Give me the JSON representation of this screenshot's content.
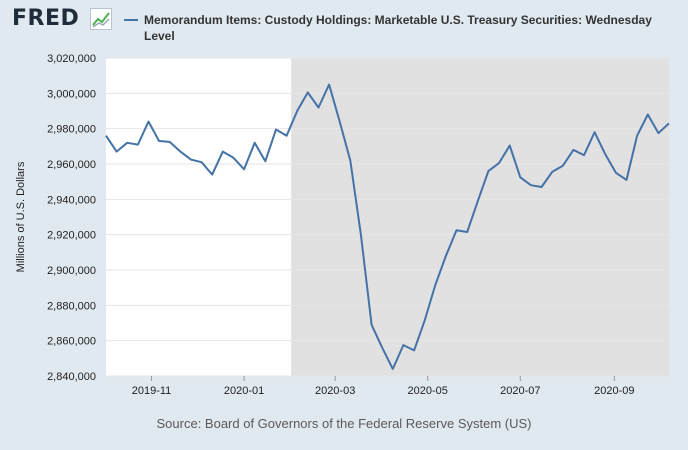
{
  "brand": {
    "logo_text": "FRED",
    "logo_icon": "chart-line-icon"
  },
  "colors": {
    "series": "#4572a7",
    "recession_shade": "#e1e1e1",
    "plot_bg": "#ffffff",
    "page_bg": "#e1e9f0"
  },
  "source": "Source: Board of Governors of the Federal Reserve System (US)",
  "chart_data": {
    "type": "line",
    "title": "",
    "xlabel": "",
    "ylabel": "Millions of U.S. Dollars",
    "ylim": [
      2840000,
      3020000
    ],
    "yticks": [
      2840000,
      2860000,
      2880000,
      2900000,
      2920000,
      2940000,
      2960000,
      2980000,
      3000000,
      3020000
    ],
    "ytick_labels": [
      "2,840,000",
      "2,860,000",
      "2,880,000",
      "2,900,000",
      "2,920,000",
      "2,940,000",
      "2,960,000",
      "2,980,000",
      "3,000,000",
      "3,020,000"
    ],
    "xlim": [
      "2019-10-02",
      "2020-10-07"
    ],
    "xticks": [
      "2019-11-01",
      "2020-01-01",
      "2020-03-01",
      "2020-05-01",
      "2020-07-01",
      "2020-09-01"
    ],
    "xtick_labels": [
      "2019-11",
      "2020-01",
      "2020-03",
      "2020-05",
      "2020-07",
      "2020-09"
    ],
    "grid": true,
    "shaded_regions": [
      {
        "start": "2020-02-01",
        "end": "2020-10-07"
      }
    ],
    "series": [
      {
        "name": "Memorandum Items: Custody Holdings: Marketable U.S. Treasury Securities: Wednesday Level",
        "x": [
          "2019-10-02",
          "2019-10-09",
          "2019-10-16",
          "2019-10-23",
          "2019-10-30",
          "2019-11-06",
          "2019-11-13",
          "2019-11-20",
          "2019-11-27",
          "2019-12-04",
          "2019-12-11",
          "2019-12-18",
          "2019-12-25",
          "2020-01-01",
          "2020-01-08",
          "2020-01-15",
          "2020-01-22",
          "2020-01-29",
          "2020-02-05",
          "2020-02-12",
          "2020-02-19",
          "2020-02-26",
          "2020-03-04",
          "2020-03-11",
          "2020-03-18",
          "2020-03-25",
          "2020-04-01",
          "2020-04-08",
          "2020-04-15",
          "2020-04-22",
          "2020-04-29",
          "2020-05-06",
          "2020-05-13",
          "2020-05-20",
          "2020-05-27",
          "2020-06-03",
          "2020-06-10",
          "2020-06-17",
          "2020-06-24",
          "2020-07-01",
          "2020-07-08",
          "2020-07-15",
          "2020-07-22",
          "2020-07-29",
          "2020-08-05",
          "2020-08-12",
          "2020-08-19",
          "2020-08-26",
          "2020-09-02",
          "2020-09-09",
          "2020-09-16",
          "2020-09-23",
          "2020-09-30",
          "2020-10-07"
        ],
        "y": [
          2976000,
          2967000,
          2972000,
          2971000,
          2984000,
          2973000,
          2972500,
          2967000,
          2962500,
          2961000,
          2954000,
          2967000,
          2963500,
          2957000,
          2972000,
          2961500,
          2979500,
          2976000,
          2990000,
          3000500,
          2992000,
          3005000,
          2984000,
          2962000,
          2920000,
          2869000,
          2856000,
          2844000,
          2857500,
          2854500,
          2871500,
          2891500,
          2908000,
          2922500,
          2921500,
          2939000,
          2956000,
          2960500,
          2970500,
          2952500,
          2948000,
          2947000,
          2955500,
          2959000,
          2968000,
          2965000,
          2978000,
          2965500,
          2955000,
          2951000,
          2976000,
          2988000,
          2977500,
          2983000
        ]
      }
    ]
  }
}
